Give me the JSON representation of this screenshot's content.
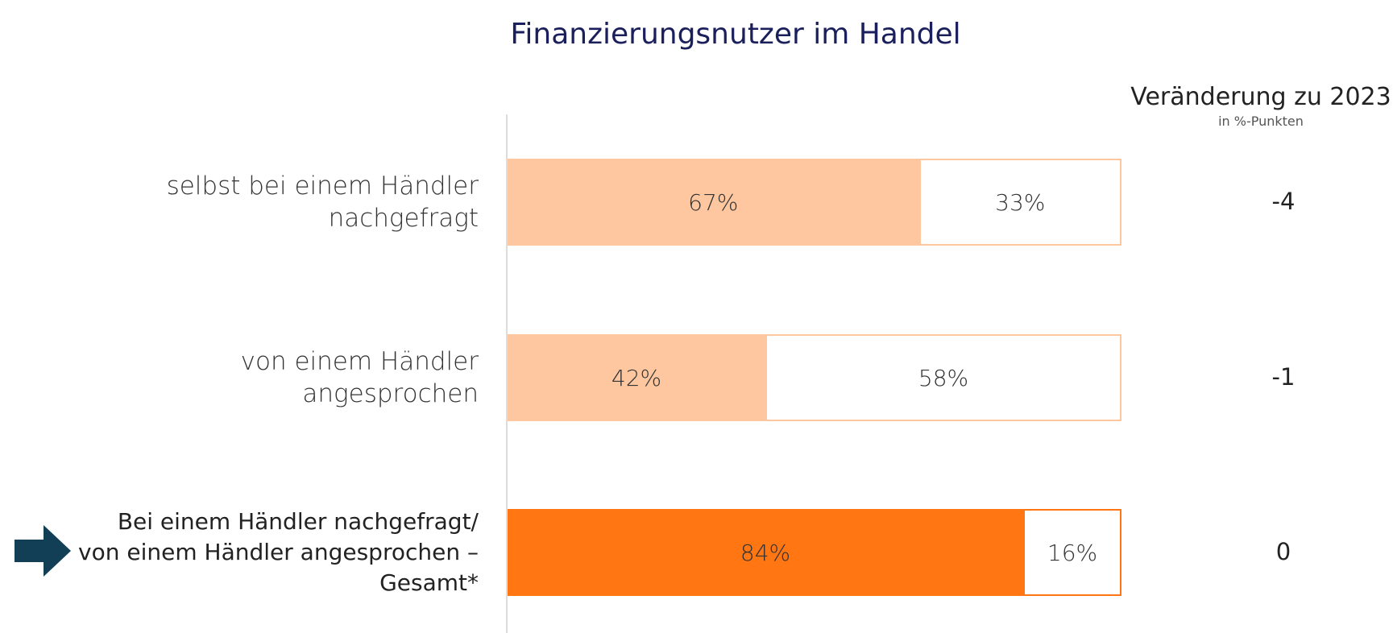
{
  "chart_data": {
    "type": "stacked_bar_horizontal",
    "title": "Finanzierungsnutzer im Handel",
    "categories": [
      "selbst bei einem Händler\nnachgefragt",
      "von einem Händler\nangesprochen",
      "Bei einem Händler nachgefragt/\nvon einem Händler angesprochen –\nGesamt*"
    ],
    "series": [
      {
        "values": [
          67,
          42,
          84
        ],
        "value_labels": [
          "67%",
          "42%",
          "84%"
        ],
        "colors": [
          "#fec7a0",
          "#fec7a0",
          "#ff7613"
        ]
      },
      {
        "values": [
          33,
          58,
          16
        ],
        "value_labels": [
          "33%",
          "58%",
          "16%"
        ],
        "color": "#ffffff",
        "border": [
          "#fec7a0",
          "#fec7a0",
          "#ff7613"
        ]
      }
    ],
    "xlim": [
      0,
      100
    ],
    "change": {
      "title": "Veränderung zu 2023",
      "subtitle": "in %-Punkten",
      "values": [
        -4,
        -1,
        0
      ]
    }
  }
}
